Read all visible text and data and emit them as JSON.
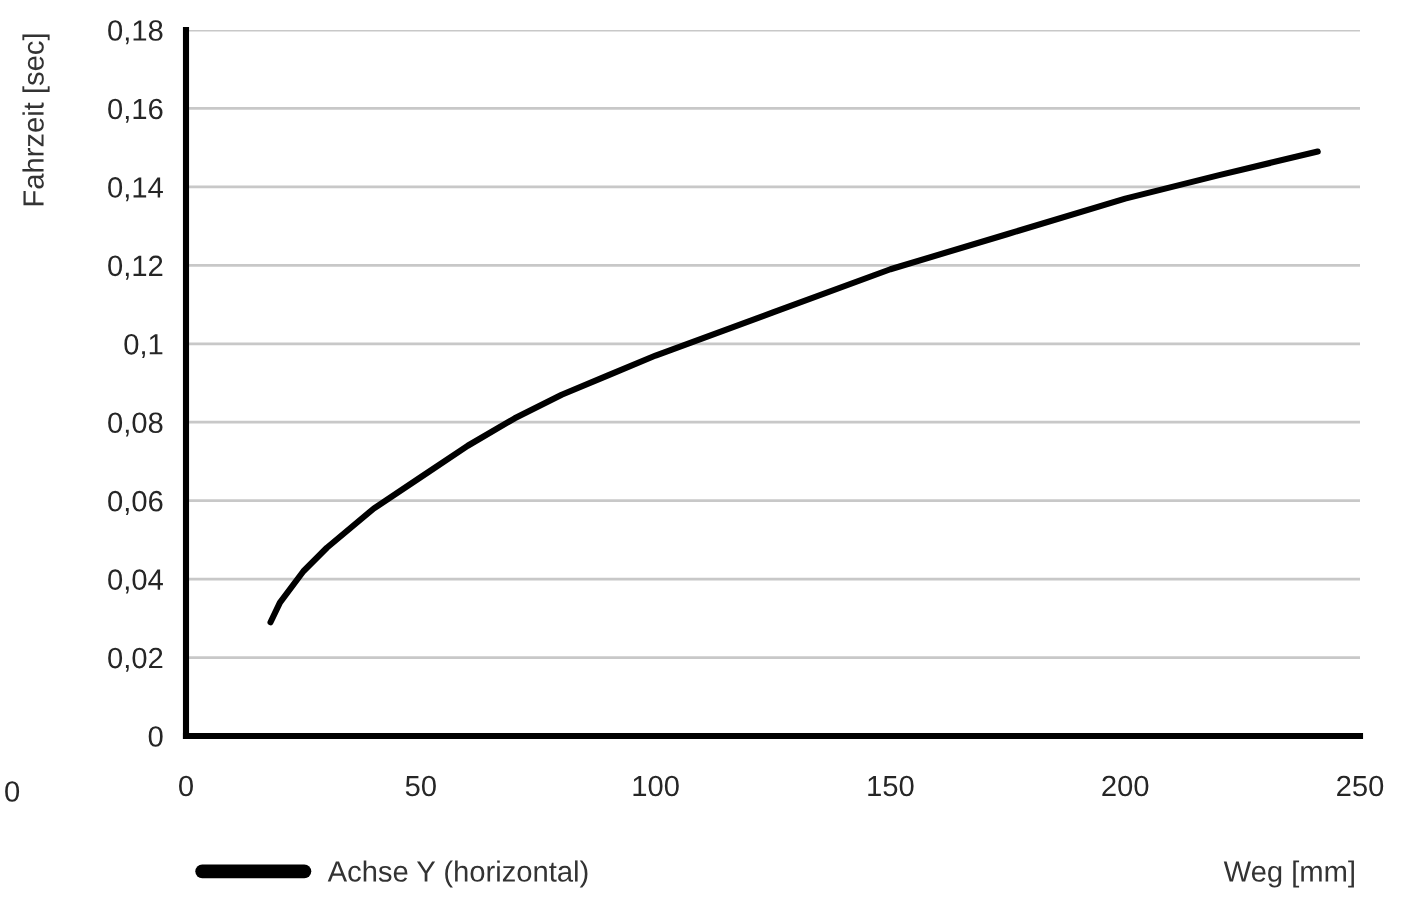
{
  "chart_data": {
    "type": "line",
    "xlabel": "Weg [mm]",
    "ylabel": "Fahrzeit [sec]",
    "annotations": [
      "0"
    ],
    "series": [
      {
        "name": "Achse Y (horizontal)",
        "color": "#000000",
        "x": [
          18,
          20,
          25,
          30,
          40,
          50,
          60,
          70,
          80,
          90,
          100,
          125,
          150,
          175,
          200,
          220,
          241
        ],
        "values": [
          0.029,
          0.034,
          0.042,
          0.048,
          0.058,
          0.066,
          0.074,
          0.081,
          0.087,
          0.092,
          0.097,
          0.108,
          0.119,
          0.128,
          0.137,
          0.143,
          0.149
        ]
      }
    ],
    "xlim": [
      0,
      250
    ],
    "xticks": [
      0,
      50,
      100,
      150,
      200,
      250
    ],
    "ylim": [
      0,
      0.18
    ],
    "yticks": [
      {
        "value": 0,
        "label": "0"
      },
      {
        "value": 0.02,
        "label": "0,02"
      },
      {
        "value": 0.04,
        "label": "0,04"
      },
      {
        "value": 0.06,
        "label": "0,06"
      },
      {
        "value": 0.08,
        "label": "0,08"
      },
      {
        "value": 0.1,
        "label": "0,1"
      },
      {
        "value": 0.12,
        "label": "0,12"
      },
      {
        "value": 0.14,
        "label": "0,14"
      },
      {
        "value": 0.16,
        "label": "0,16"
      },
      {
        "value": 0.18,
        "label": "0,18"
      }
    ],
    "grid": "y",
    "legend": "bottom left",
    "marker": "none",
    "line_style": "solid"
  }
}
